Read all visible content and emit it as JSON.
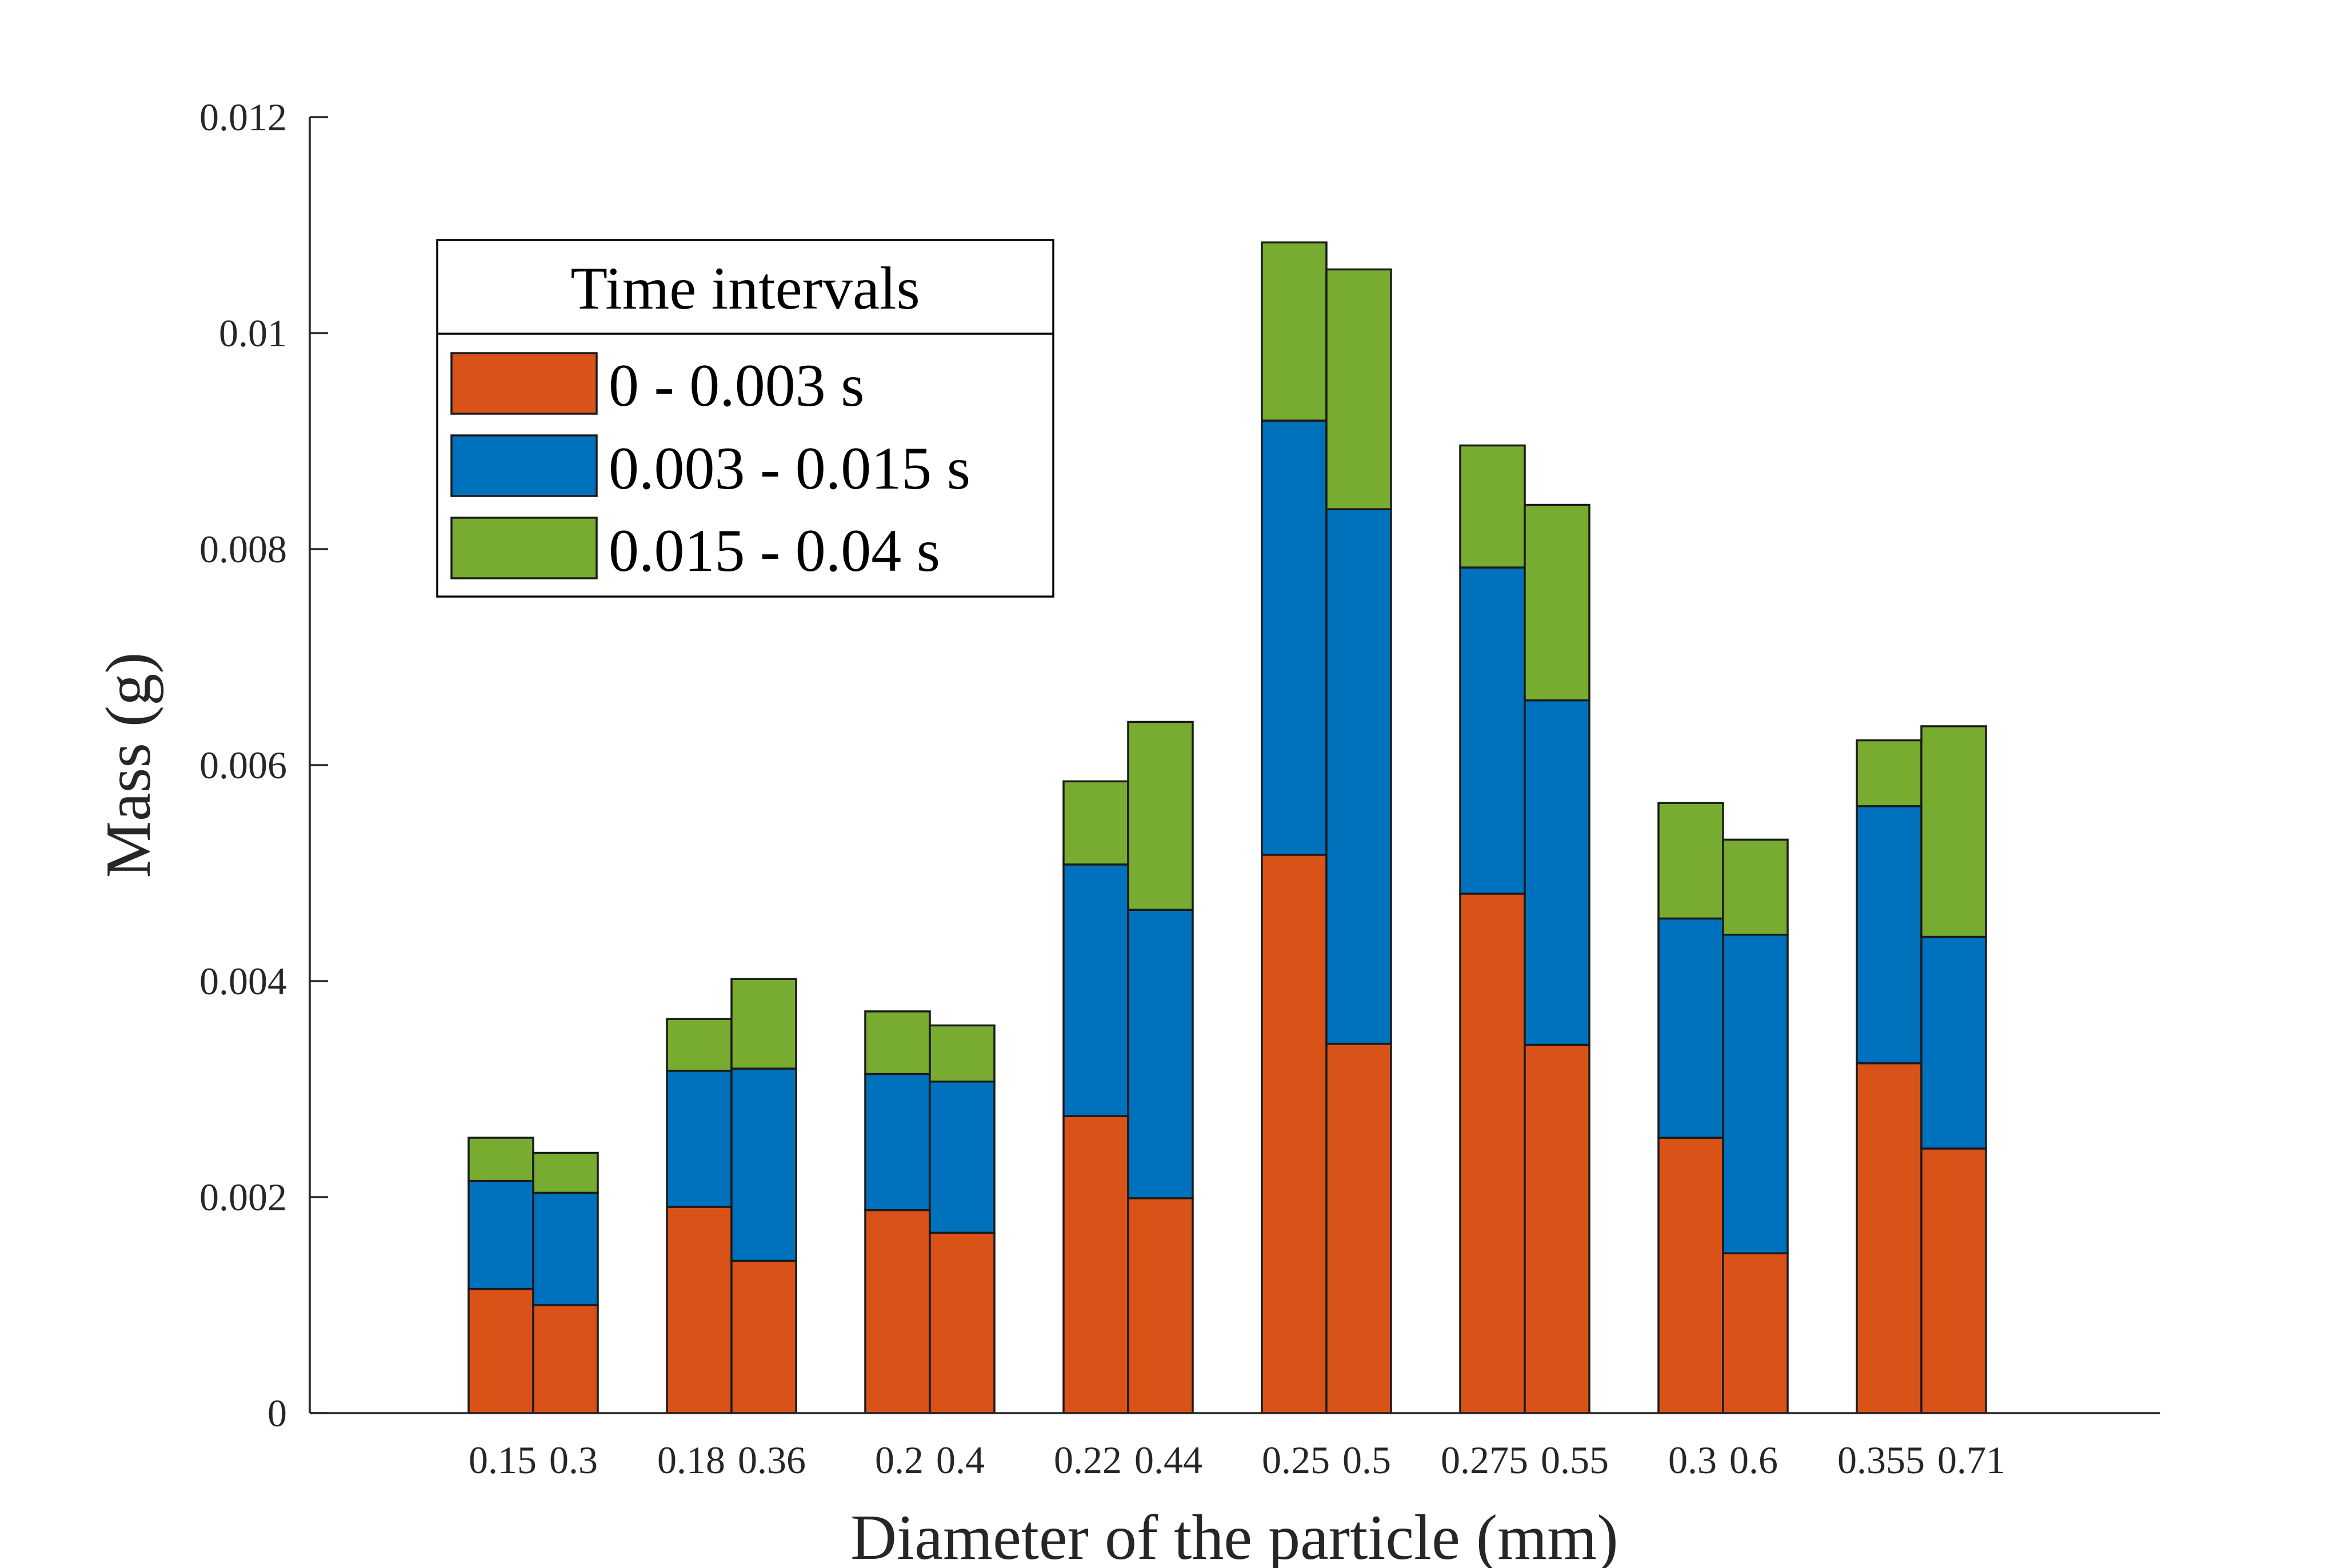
{
  "chart_data": {
    "type": "bar",
    "stacked": true,
    "title": "",
    "xlabel": "Diameter of the particle (mm)",
    "ylabel": "Mass (g)",
    "ylim": [
      0,
      0.012
    ],
    "yticks": [
      0,
      0.002,
      0.004,
      0.006,
      0.008,
      0.01,
      0.012
    ],
    "ytick_labels": [
      "0",
      "0.002",
      "0.004",
      "0.006",
      "0.008",
      "0.01",
      "0.012"
    ],
    "groups": [
      {
        "label_a": "0.15",
        "label_b": "0.3"
      },
      {
        "label_a": "0.18",
        "label_b": "0.36"
      },
      {
        "label_a": "0.2",
        "label_b": "0.4"
      },
      {
        "label_a": "0.22",
        "label_b": "0.44"
      },
      {
        "label_a": "0.25",
        "label_b": "0.5"
      },
      {
        "label_a": "0.275",
        "label_b": "0.55"
      },
      {
        "label_a": "0.3",
        "label_b": "0.6"
      },
      {
        "label_a": "0.355",
        "label_b": "0.71"
      }
    ],
    "categories": [
      "0.15",
      "0.3",
      "0.18",
      "0.36",
      "0.2",
      "0.4",
      "0.22",
      "0.44",
      "0.25",
      "0.5",
      "0.275",
      "0.55",
      "0.3",
      "0.6",
      "0.355",
      "0.71"
    ],
    "series": [
      {
        "name": "0 - 0.003 s",
        "color": "#D95319",
        "values": [
          0.00115,
          0.001,
          0.00191,
          0.00141,
          0.00188,
          0.00167,
          0.00275,
          0.00199,
          0.00517,
          0.00342,
          0.00481,
          0.00341,
          0.00255,
          0.00148,
          0.00324,
          0.00245
        ]
      },
      {
        "name": "0.003 - 0.015 s",
        "color": "#0072BD",
        "values": [
          0.001,
          0.00104,
          0.00126,
          0.00178,
          0.00126,
          0.0014,
          0.00233,
          0.00267,
          0.00402,
          0.00495,
          0.00302,
          0.00319,
          0.00203,
          0.00295,
          0.00238,
          0.00196
        ]
      },
      {
        "name": "0.015 - 0.04 s",
        "color": "#77AC30",
        "values": [
          0.0004,
          0.00037,
          0.00048,
          0.00083,
          0.00058,
          0.00052,
          0.00077,
          0.00174,
          0.00165,
          0.00222,
          0.00113,
          0.00181,
          0.00107,
          0.00088,
          0.00061,
          0.00195
        ]
      }
    ],
    "legend": {
      "title": "Time intervals",
      "position": "top-left"
    },
    "grid": false
  }
}
